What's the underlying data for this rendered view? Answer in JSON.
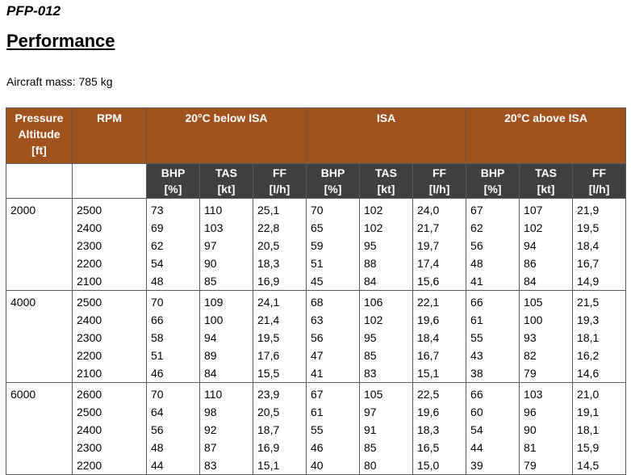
{
  "doc_id": "PFP-012",
  "title": "Performance",
  "mass_label": "Aircraft mass: 785 kg",
  "headers": {
    "altitude": [
      "Pressure",
      "Altitude",
      "[ft]"
    ],
    "rpm": "RPM",
    "conditions": [
      "20°C below ISA",
      "ISA",
      "20°C above ISA"
    ],
    "sub": [
      {
        "line1": "BHP",
        "line2": "[%]"
      },
      {
        "line1": "TAS",
        "line2": "[kt]"
      },
      {
        "line1": "FF",
        "line2": "[l/h]"
      }
    ]
  },
  "groups": [
    {
      "altitude": "2000",
      "rows": [
        {
          "rpm": "2500",
          "v": [
            "73",
            "110",
            "25,1",
            "70",
            "102",
            "24,0",
            "67",
            "107",
            "21,9"
          ]
        },
        {
          "rpm": "2400",
          "v": [
            "69",
            "103",
            "22,8",
            "65",
            "102",
            "21,7",
            "62",
            "102",
            "19,5"
          ]
        },
        {
          "rpm": "2300",
          "v": [
            "62",
            "97",
            "20,5",
            "59",
            "95",
            "19,7",
            "56",
            "94",
            "18,4"
          ]
        },
        {
          "rpm": "2200",
          "v": [
            "54",
            "90",
            "18,3",
            "51",
            "88",
            "17,4",
            "48",
            "86",
            "16,7"
          ]
        },
        {
          "rpm": "2100",
          "v": [
            "48",
            "85",
            "16,9",
            "45",
            "84",
            "15,6",
            "41",
            "84",
            "14,9"
          ]
        }
      ]
    },
    {
      "altitude": "4000",
      "rows": [
        {
          "rpm": "2500",
          "v": [
            "70",
            "109",
            "24,1",
            "68",
            "106",
            "22,1",
            "66",
            "105",
            "21,5"
          ]
        },
        {
          "rpm": "2400",
          "v": [
            "66",
            "100",
            "21,4",
            "63",
            "102",
            "19,6",
            "61",
            "100",
            "19,3"
          ]
        },
        {
          "rpm": "2300",
          "v": [
            "58",
            "94",
            "19,5",
            "56",
            "95",
            "18,4",
            "55",
            "93",
            "18,1"
          ]
        },
        {
          "rpm": "2200",
          "v": [
            "51",
            "89",
            "17,6",
            "47",
            "85",
            "16,7",
            "43",
            "82",
            "16,2"
          ]
        },
        {
          "rpm": "2100",
          "v": [
            "46",
            "84",
            "15,5",
            "41",
            "83",
            "15,1",
            "38",
            "79",
            "14,6"
          ]
        }
      ]
    },
    {
      "altitude": "6000",
      "rows": [
        {
          "rpm": "2600",
          "v": [
            "70",
            "110",
            "23,9",
            "67",
            "105",
            "22,5",
            "66",
            "103",
            "21,0"
          ]
        },
        {
          "rpm": "2500",
          "v": [
            "64",
            "98",
            "20,5",
            "61",
            "97",
            "19,6",
            "60",
            "96",
            "19,1"
          ]
        },
        {
          "rpm": "2400",
          "v": [
            "56",
            "92",
            "18,7",
            "55",
            "91",
            "18,3",
            "54",
            "90",
            "18,1"
          ]
        },
        {
          "rpm": "2300",
          "v": [
            "48",
            "87",
            "16,9",
            "46",
            "85",
            "16,5",
            "44",
            "81",
            "15,9"
          ]
        },
        {
          "rpm": "2200",
          "v": [
            "44",
            "83",
            "15,1",
            "40",
            "80",
            "15,0",
            "39",
            "79",
            "14,5"
          ]
        }
      ]
    }
  ]
}
